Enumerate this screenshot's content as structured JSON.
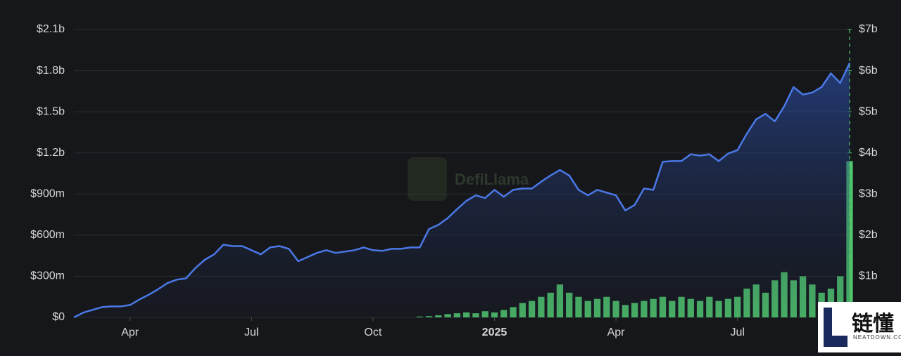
{
  "chart_data": {
    "type": "line-bar",
    "watermark": "DefiLlama",
    "badge": {
      "title": "链懂",
      "subtitle": "NEATDOWN.COM"
    },
    "categories": [
      null,
      null,
      null,
      null,
      null,
      null,
      "Apr",
      null,
      null,
      null,
      null,
      null,
      null,
      null,
      null,
      null,
      null,
      null,
      null,
      "Jul",
      null,
      null,
      null,
      null,
      null,
      null,
      null,
      null,
      null,
      null,
      null,
      null,
      "Oct",
      null,
      null,
      null,
      null,
      null,
      null,
      null,
      null,
      null,
      null,
      null,
      null,
      "2025",
      null,
      null,
      null,
      null,
      null,
      null,
      null,
      null,
      null,
      null,
      null,
      null,
      "Apr",
      null,
      null,
      null,
      null,
      null,
      null,
      null,
      null,
      null,
      null,
      null,
      null,
      "Jul",
      null,
      null,
      null,
      null,
      null,
      null,
      null,
      null,
      null,
      null,
      null,
      null
    ],
    "series": [
      {
        "color": "#4a78e6",
        "values": [
          0,
          35,
          55,
          75,
          80,
          80,
          90,
          130,
          165,
          205,
          250,
          275,
          285,
          360,
          420,
          460,
          530,
          520,
          520,
          490,
          460,
          510,
          520,
          500,
          410,
          440,
          470,
          490,
          470,
          480,
          490,
          510,
          490,
          485,
          500,
          500,
          510,
          510,
          645,
          675,
          725,
          790,
          850,
          890,
          870,
          930,
          880,
          930,
          940,
          940,
          990,
          1035,
          1075,
          1035,
          930,
          890,
          930,
          910,
          890,
          780,
          820,
          940,
          930,
          1135,
          1140,
          1140,
          1190,
          1180,
          1190,
          1140,
          1195,
          1220,
          1340,
          1445,
          1485,
          1430,
          1540,
          1680,
          1625,
          1640,
          1680,
          1780,
          1710,
          1855
        ]
      },
      {
        "color": "#4fc46a",
        "axis": "y2",
        "values": [
          0,
          0,
          0,
          0,
          0,
          0,
          0,
          0,
          0,
          0,
          0,
          0,
          0,
          0,
          0,
          0,
          0,
          0,
          0,
          0,
          0,
          0,
          0,
          0,
          0,
          0,
          0,
          0,
          0,
          0,
          0,
          0,
          0,
          0,
          0,
          0,
          0,
          0.02,
          0.03,
          0.05,
          0.08,
          0.1,
          0.12,
          0.1,
          0.15,
          0.12,
          0.18,
          0.25,
          0.35,
          0.4,
          0.5,
          0.6,
          0.8,
          0.6,
          0.5,
          0.4,
          0.45,
          0.5,
          0.4,
          0.3,
          0.35,
          0.4,
          0.45,
          0.5,
          0.4,
          0.5,
          0.45,
          0.4,
          0.5,
          0.4,
          0.45,
          0.5,
          0.7,
          0.8,
          0.6,
          0.9,
          1.1,
          0.9,
          1.0,
          0.8,
          0.6,
          0.7,
          1.0,
          3.8
        ]
      }
    ],
    "ylim": [
      0,
      2100
    ],
    "yticks": [
      {
        "value": 0,
        "label": "$0"
      },
      {
        "value": 300,
        "label": "$300m"
      },
      {
        "value": 600,
        "label": "$600m"
      },
      {
        "value": 900,
        "label": "$900m"
      },
      {
        "value": 1200,
        "label": "$1.2b"
      },
      {
        "value": 1500,
        "label": "$1.5b"
      },
      {
        "value": 1800,
        "label": "$1.8b"
      },
      {
        "value": 2100,
        "label": "$2.1b"
      }
    ],
    "y2lim": [
      0,
      7
    ],
    "y2ticks": [
      {
        "value": 1,
        "label": "$1b"
      },
      {
        "value": 2,
        "label": "$2b"
      },
      {
        "value": 3,
        "label": "$3b"
      },
      {
        "value": 4,
        "label": "$4b"
      },
      {
        "value": 5,
        "label": "$5b"
      },
      {
        "value": 6,
        "label": "$6b"
      },
      {
        "value": 7,
        "label": "$7b"
      }
    ],
    "grid": true
  }
}
